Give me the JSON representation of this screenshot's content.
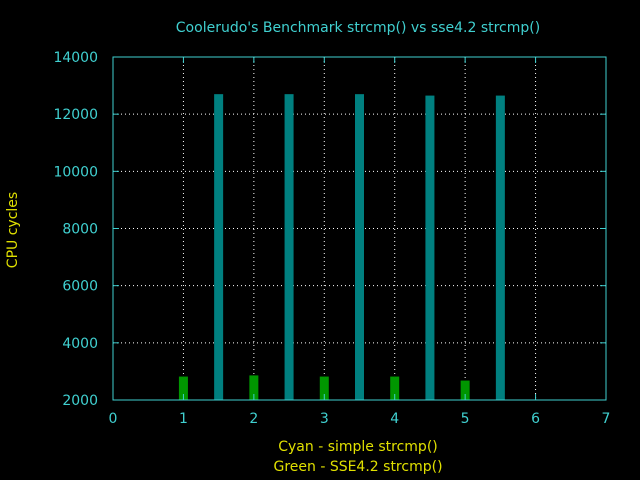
{
  "chart_data": {
    "type": "bar",
    "title": "Coolerudo's Benchmark strcmp() vs sse4.2 strcmp()",
    "ylabel": "CPU cycles",
    "xlabel_lines": [
      "Cyan - simple strcmp()",
      "Green - SSE4.2 strcmp()"
    ],
    "xlim": [
      0,
      7
    ],
    "ylim": [
      2000,
      14000
    ],
    "xticks": [
      0,
      1,
      2,
      3,
      4,
      5,
      6,
      7
    ],
    "yticks": [
      2000,
      4000,
      6000,
      8000,
      10000,
      12000,
      14000
    ],
    "grid": true,
    "series": [
      {
        "name": "SSE4.2 strcmp()",
        "color": "#009600",
        "points": [
          {
            "x": 1,
            "y": 2820
          },
          {
            "x": 2,
            "y": 2860
          },
          {
            "x": 3,
            "y": 2820
          },
          {
            "x": 4,
            "y": 2820
          },
          {
            "x": 5,
            "y": 2680
          }
        ]
      },
      {
        "name": "simple strcmp()",
        "color": "#008080",
        "points": [
          {
            "x": 1.5,
            "y": 12700
          },
          {
            "x": 2.5,
            "y": 12700
          },
          {
            "x": 3.5,
            "y": 12700
          },
          {
            "x": 4.5,
            "y": 12650
          },
          {
            "x": 5.5,
            "y": 12650
          }
        ]
      }
    ],
    "colors": {
      "background": "#000000",
      "axis": "#40d0d0",
      "title_text": "#40d0d0",
      "label_text": "#e0e000",
      "grid": "#ffffff"
    }
  }
}
